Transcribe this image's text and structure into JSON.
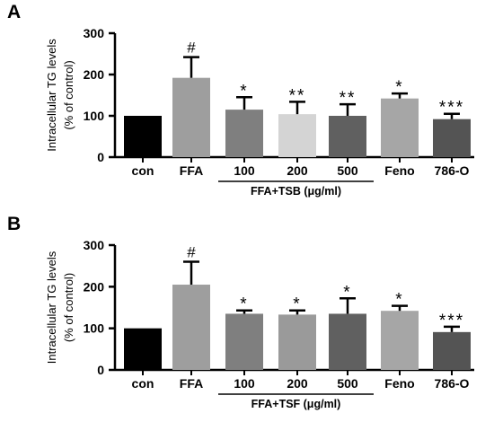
{
  "chart_data": [
    {
      "type": "bar",
      "panel": "A",
      "ylabel": [
        "Intracellular TG levels",
        "(% of control)"
      ],
      "ylim": [
        0,
        300
      ],
      "yticks": [
        "0",
        "100",
        "200",
        "300"
      ],
      "categories": [
        "con",
        "FFA",
        "100",
        "200",
        "500",
        "Feno",
        "786-O"
      ],
      "values": [
        100,
        192,
        115,
        104,
        100,
        142,
        92
      ],
      "errors": [
        0,
        50,
        30,
        30,
        28,
        12,
        13
      ],
      "annotations": [
        "",
        "#",
        "*",
        "**",
        "**",
        "*",
        "***"
      ],
      "bar_colors": [
        "#000000",
        "#9e9e9e",
        "#7f7f7f",
        "#d4d4d4",
        "#606060",
        "#a6a6a6",
        "#545454"
      ],
      "group_label": "FFA+TSB (μg/ml)",
      "group_span": [
        2,
        4
      ]
    },
    {
      "type": "bar",
      "panel": "B",
      "ylabel": [
        "Intracellular TG levels",
        "(% of control)"
      ],
      "ylim": [
        0,
        300
      ],
      "yticks": [
        "0",
        "100",
        "200",
        "300"
      ],
      "categories": [
        "con",
        "FFA",
        "100",
        "200",
        "500",
        "Feno",
        "786-O"
      ],
      "values": [
        100,
        205,
        135,
        133,
        135,
        142,
        91
      ],
      "errors": [
        0,
        55,
        8,
        10,
        37,
        12,
        13
      ],
      "annotations": [
        "",
        "#",
        "*",
        "*",
        "*",
        "*",
        "***"
      ],
      "bar_colors": [
        "#000000",
        "#9e9e9e",
        "#7f7f7f",
        "#9a9a9a",
        "#606060",
        "#a6a6a6",
        "#545454"
      ],
      "group_label": "FFA+TSF (μg/ml)",
      "group_span": [
        2,
        4
      ]
    }
  ]
}
